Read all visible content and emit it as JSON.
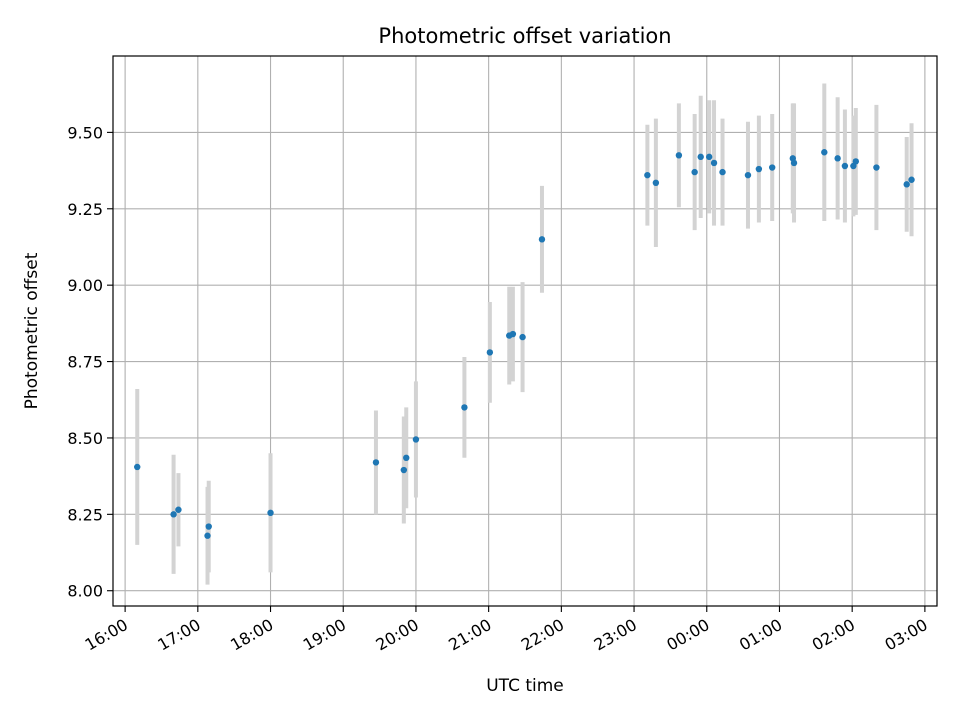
{
  "chart_data": {
    "type": "scatter",
    "title": "Photometric offset variation",
    "xlabel": "UTC time",
    "ylabel": "Photometric offset",
    "x_unit": "UTC",
    "xlim": [
      "15:50",
      "27:10"
    ],
    "ylim": [
      7.95,
      9.75
    ],
    "x_ticks": [
      {
        "value": "16:00",
        "label": "16:00"
      },
      {
        "value": "17:00",
        "label": "17:00"
      },
      {
        "value": "18:00",
        "label": "18:00"
      },
      {
        "value": "19:00",
        "label": "19:00"
      },
      {
        "value": "20:00",
        "label": "20:00"
      },
      {
        "value": "21:00",
        "label": "21:00"
      },
      {
        "value": "22:00",
        "label": "22:00"
      },
      {
        "value": "23:00",
        "label": "23:00"
      },
      {
        "value": "24:00",
        "label": "00:00"
      },
      {
        "value": "25:00",
        "label": "01:00"
      },
      {
        "value": "26:00",
        "label": "02:00"
      },
      {
        "value": "27:00",
        "label": "03:00"
      }
    ],
    "y_ticks": [
      "8.00",
      "8.25",
      "8.50",
      "8.75",
      "9.00",
      "9.25",
      "9.50"
    ],
    "grid": true,
    "legend": false,
    "series": [
      {
        "point_color": "#1f77b4",
        "errorbar_color": "#d3d3d3",
        "points": [
          {
            "x": "16:10",
            "y": 8.405,
            "err": 0.255
          },
          {
            "x": "16:40",
            "y": 8.25,
            "err": 0.195
          },
          {
            "x": "16:44",
            "y": 8.265,
            "err": 0.12
          },
          {
            "x": "17:08",
            "y": 8.18,
            "err": 0.16
          },
          {
            "x": "17:09",
            "y": 8.21,
            "err": 0.15
          },
          {
            "x": "18:00",
            "y": 8.255,
            "err": 0.195
          },
          {
            "x": "19:27",
            "y": 8.42,
            "err": 0.17
          },
          {
            "x": "19:50",
            "y": 8.395,
            "err": 0.175
          },
          {
            "x": "19:52",
            "y": 8.435,
            "err": 0.165
          },
          {
            "x": "20:00",
            "y": 8.495,
            "err": 0.19
          },
          {
            "x": "20:40",
            "y": 8.6,
            "err": 0.165
          },
          {
            "x": "21:01",
            "y": 8.78,
            "err": 0.165
          },
          {
            "x": "21:17",
            "y": 8.835,
            "err": 0.16
          },
          {
            "x": "21:20",
            "y": 8.84,
            "err": 0.155
          },
          {
            "x": "21:28",
            "y": 8.83,
            "err": 0.18
          },
          {
            "x": "21:44",
            "y": 9.15,
            "err": 0.175
          },
          {
            "x": "23:11",
            "y": 9.36,
            "err": 0.165
          },
          {
            "x": "23:18",
            "y": 9.335,
            "err": 0.21
          },
          {
            "x": "23:37",
            "y": 9.425,
            "err": 0.17
          },
          {
            "x": "23:50",
            "y": 9.37,
            "err": 0.19
          },
          {
            "x": "23:55",
            "y": 9.42,
            "err": 0.2
          },
          {
            "x": "24:02",
            "y": 9.42,
            "err": 0.185
          },
          {
            "x": "24:06",
            "y": 9.4,
            "err": 0.205
          },
          {
            "x": "24:13",
            "y": 9.37,
            "err": 0.175
          },
          {
            "x": "24:34",
            "y": 9.36,
            "err": 0.175
          },
          {
            "x": "24:43",
            "y": 9.38,
            "err": 0.175
          },
          {
            "x": "24:54",
            "y": 9.385,
            "err": 0.175
          },
          {
            "x": "25:11",
            "y": 9.415,
            "err": 0.18
          },
          {
            "x": "25:12",
            "y": 9.4,
            "err": 0.195
          },
          {
            "x": "25:37",
            "y": 9.435,
            "err": 0.225
          },
          {
            "x": "25:48",
            "y": 9.415,
            "err": 0.2
          },
          {
            "x": "25:54",
            "y": 9.39,
            "err": 0.185
          },
          {
            "x": "26:01",
            "y": 9.39,
            "err": 0.165
          },
          {
            "x": "26:03",
            "y": 9.405,
            "err": 0.175
          },
          {
            "x": "26:20",
            "y": 9.385,
            "err": 0.205
          },
          {
            "x": "26:45",
            "y": 9.33,
            "err": 0.155
          },
          {
            "x": "26:49",
            "y": 9.345,
            "err": 0.185
          }
        ]
      }
    ]
  }
}
